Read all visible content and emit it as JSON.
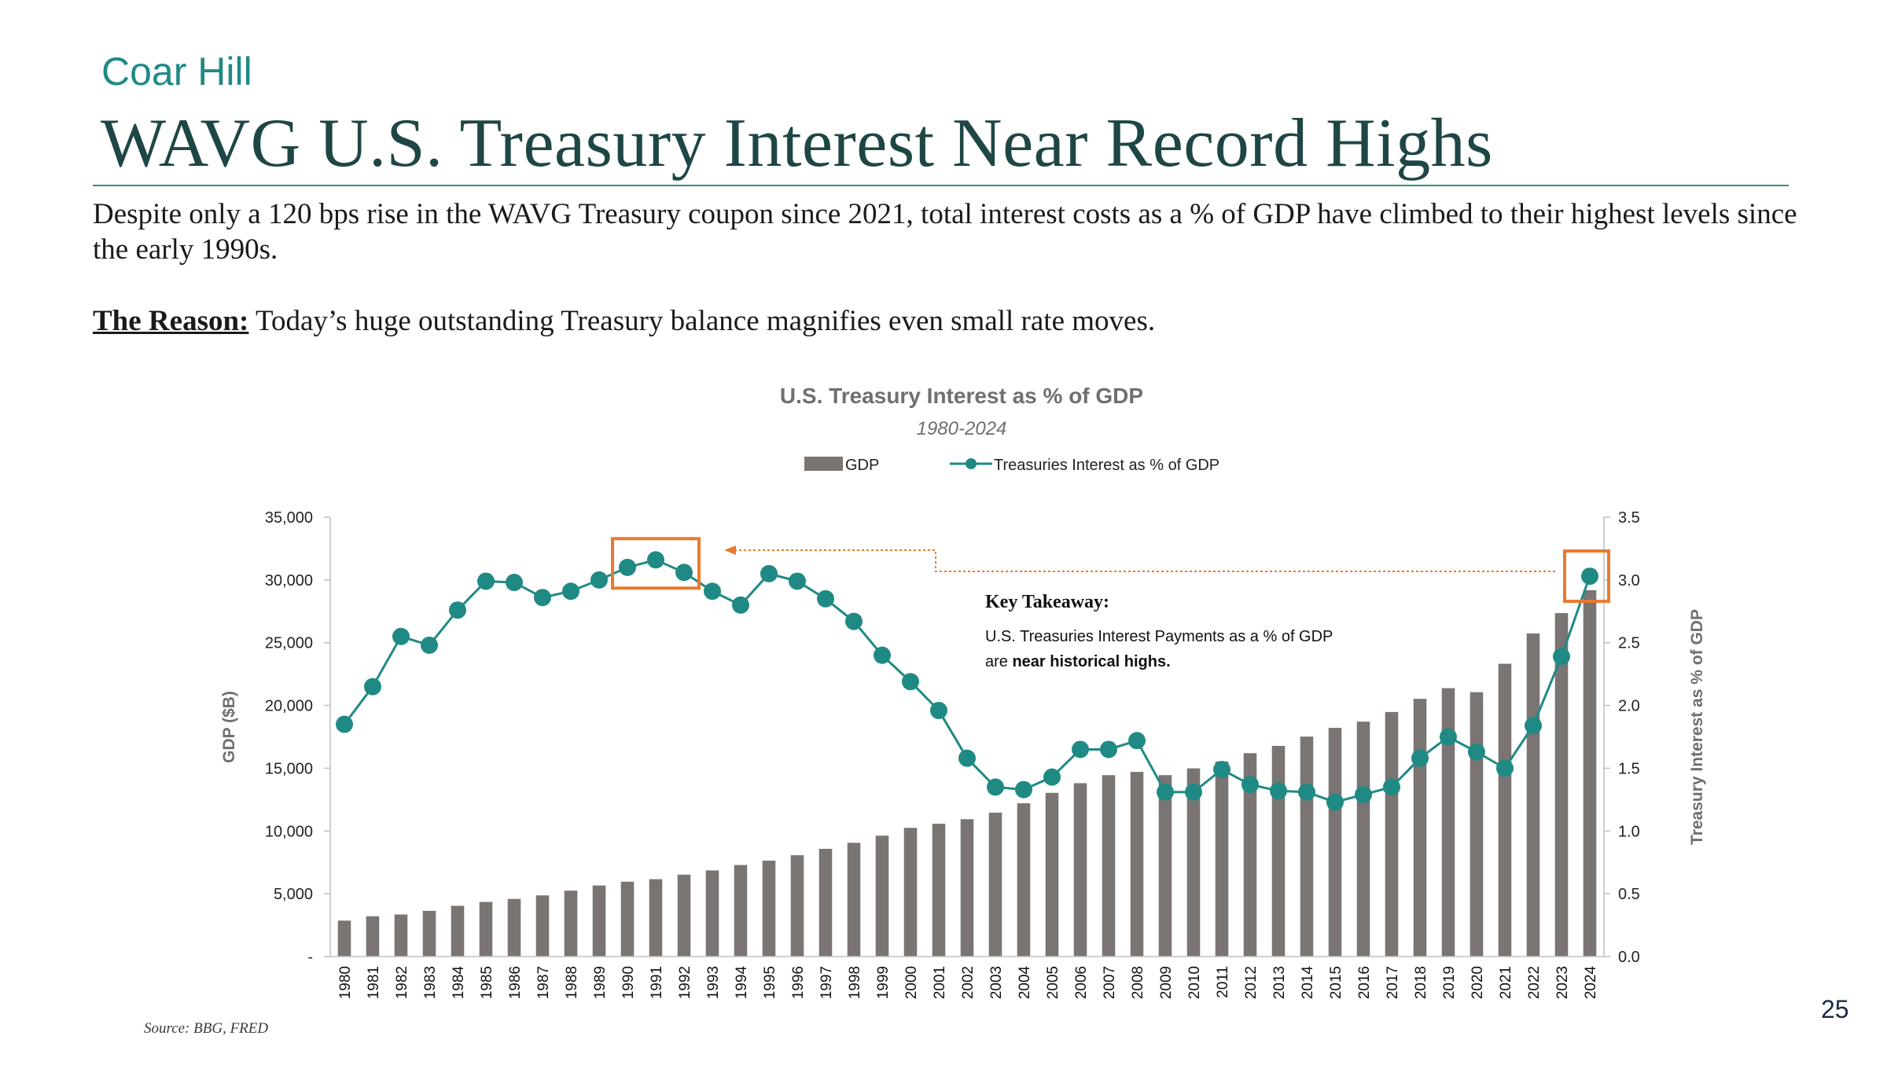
{
  "header": {
    "brand": "Coar Hill",
    "title": "WAVG U.S. Treasury Interest Near Record Highs"
  },
  "intro": {
    "text": "Despite only a 120 bps rise in the WAVG Treasury coupon since 2021, total interest costs as a % of GDP have climbed to their highest levels since the early 1990s.",
    "reason_label": "The Reason:",
    "reason_text": " Today’s huge outstanding Treasury balance magnifies even small rate moves."
  },
  "chart_data": {
    "type": "bar",
    "title": "U.S. Treasury Interest as % of GDP",
    "subtitle": "1980-2024",
    "legend_position": "top",
    "categories": [
      "1980",
      "1981",
      "1982",
      "1983",
      "1984",
      "1985",
      "1986",
      "1987",
      "1988",
      "1989",
      "1990",
      "1991",
      "1992",
      "1993",
      "1994",
      "1995",
      "1996",
      "1997",
      "1998",
      "1999",
      "2000",
      "2001",
      "2002",
      "2003",
      "2004",
      "2005",
      "2006",
      "2007",
      "2008",
      "2009",
      "2010",
      "2011",
      "2012",
      "2013",
      "2014",
      "2015",
      "2016",
      "2017",
      "2018",
      "2019",
      "2020",
      "2021",
      "2022",
      "2023",
      "2024"
    ],
    "series": [
      {
        "name": "GDP",
        "type": "bar",
        "axis": "left",
        "color": "#7a7472",
        "values": [
          2860,
          3210,
          3350,
          3640,
          4040,
          4350,
          4590,
          4870,
          5250,
          5660,
          5960,
          6160,
          6520,
          6860,
          7290,
          7640,
          8070,
          8580,
          9060,
          9630,
          10250,
          10580,
          10940,
          11460,
          12210,
          13040,
          13810,
          14450,
          14710,
          14450,
          14990,
          15540,
          16200,
          16780,
          17520,
          18220,
          18710,
          19480,
          20530,
          21380,
          21060,
          23320,
          25740,
          27360,
          29180
        ]
      },
      {
        "name": "Treasuries Interest as % of GDP",
        "type": "line",
        "axis": "right",
        "color": "#1f8a84",
        "values": [
          1.85,
          2.15,
          2.55,
          2.48,
          2.76,
          2.99,
          2.98,
          2.86,
          2.91,
          3.0,
          3.1,
          3.16,
          3.06,
          2.91,
          2.8,
          3.05,
          2.99,
          2.85,
          2.67,
          2.4,
          2.19,
          1.96,
          1.58,
          1.35,
          1.33,
          1.43,
          1.65,
          1.65,
          1.72,
          1.31,
          1.31,
          1.49,
          1.37,
          1.32,
          1.31,
          1.23,
          1.29,
          1.35,
          1.58,
          1.75,
          1.63,
          1.5,
          1.84,
          2.39,
          3.03
        ]
      }
    ],
    "y_left": {
      "label": "GDP ($B)",
      "range": [
        0,
        35000
      ],
      "ticks": [
        "-",
        "5,000",
        "10,000",
        "15,000",
        "20,000",
        "25,000",
        "30,000",
        "35,000"
      ]
    },
    "y_right": {
      "label": "Treasury Interest as % of GDP",
      "range": [
        0,
        3.5
      ],
      "ticks": [
        "0.0",
        "0.5",
        "1.0",
        "1.5",
        "2.0",
        "2.5",
        "3.0",
        "3.5"
      ]
    },
    "highlight_years": [
      "1991",
      "2024"
    ],
    "highlight_color": "#e87a2e",
    "annotation": {
      "title": "Key Takeaway:",
      "line1": "U.S. Treasuries Interest Payments as a % of GDP",
      "line2_prefix": "are ",
      "line2_bold": "near historical highs."
    }
  },
  "footer": {
    "source": "Source: BBG, FRED",
    "page": "25"
  }
}
